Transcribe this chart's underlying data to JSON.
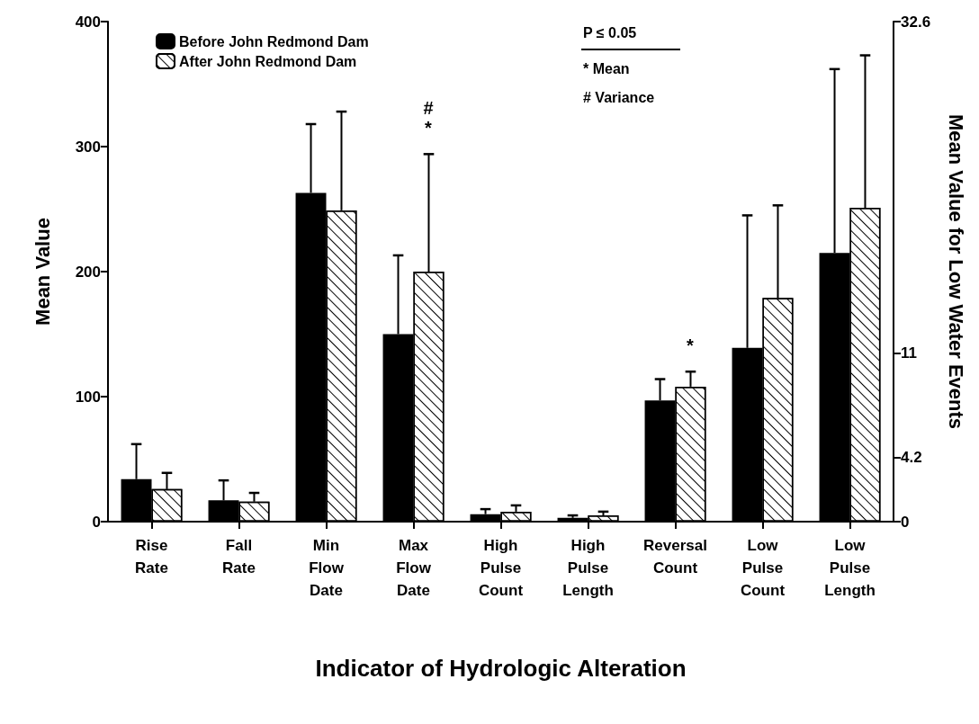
{
  "chart_data": {
    "type": "bar",
    "xlabel": "Indicator of Hydrologic Alteration",
    "ylabel": "Mean Value",
    "y2label": "Mean Value for Low Water Events",
    "categories": [
      "Rise Rate",
      "Fall Rate",
      "Min Flow Date",
      "Max Flow Date",
      "High Pulse Count",
      "High Pulse Length",
      "Reversal Count",
      "Low Pulse Count",
      "Low Pulse Length"
    ],
    "series": [
      {
        "name": "Before John Redmond Dam",
        "color": "#000000",
        "values": [
          34,
          17,
          263,
          150,
          6,
          3,
          97,
          139,
          215
        ],
        "errors": [
          [
            34,
            62
          ],
          [
            17,
            33
          ],
          [
            263,
            318
          ],
          [
            150,
            213
          ],
          [
            6,
            10
          ],
          [
            3,
            5
          ],
          [
            97,
            114
          ],
          [
            139,
            245
          ],
          [
            215,
            362
          ]
        ]
      },
      {
        "name": "After John Redmond Dam",
        "color": "#ffffff",
        "values": [
          26,
          16,
          249,
          200,
          8,
          5,
          108,
          179,
          251
        ],
        "errors": [
          [
            26,
            39
          ],
          [
            16,
            23
          ],
          [
            249,
            328
          ],
          [
            200,
            294
          ],
          [
            8,
            13
          ],
          [
            5,
            8
          ],
          [
            108,
            120
          ],
          [
            179,
            253
          ],
          [
            251,
            373
          ]
        ]
      }
    ],
    "ylim": [
      0,
      400
    ],
    "yticks": [
      0,
      100,
      200,
      300,
      400
    ],
    "y2lim": [
      0,
      32.6
    ],
    "y2ticks": [
      0,
      4.2,
      11,
      32.6
    ],
    "annotations": [
      "P ≤ 0.05",
      "* Mean",
      "# Variance",
      "*",
      "#",
      "*"
    ],
    "legend": "top left",
    "grid": false
  }
}
